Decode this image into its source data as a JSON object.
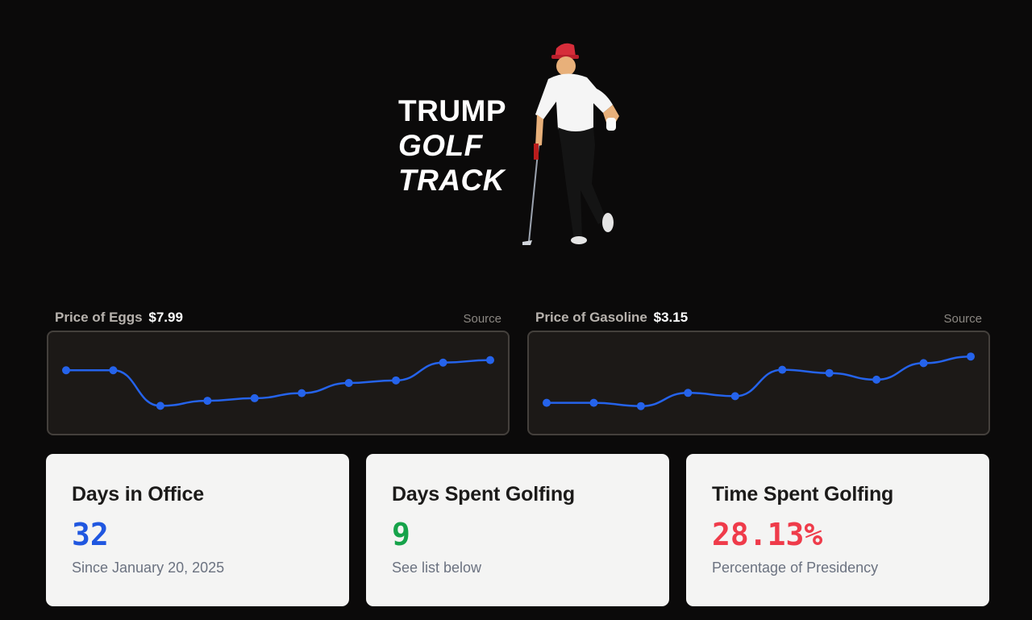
{
  "hero": {
    "line1": "TRUMP",
    "line2": "GOLF",
    "line3": "TRACK",
    "image": "golfer-leaning-on-putter"
  },
  "eggs": {
    "title": "Price of Eggs",
    "value": "$7.99",
    "source_label": "Source"
  },
  "gas": {
    "title": "Price of Gasoline",
    "value": "$3.15",
    "source_label": "Source"
  },
  "stats": [
    {
      "label": "Days in Office",
      "value": "32",
      "sub": "Since January 20, 2025",
      "color": "#2057e0"
    },
    {
      "label": "Days Spent Golfing",
      "value": "9",
      "sub": "See list below",
      "color": "#16a34a"
    },
    {
      "label": "Time Spent Golfing",
      "value": "28.13%",
      "sub": "Percentage of Presidency",
      "color": "#ef3b4a"
    }
  ],
  "chart_data": [
    {
      "type": "line",
      "name": "eggs",
      "values": [
        7.4,
        7.4,
        6.0,
        6.2,
        6.3,
        6.5,
        6.9,
        7.0,
        7.7,
        7.8
      ],
      "ylim": [
        5.6,
        8.2
      ],
      "color": "#2563eb"
    },
    {
      "type": "line",
      "name": "gas",
      "values": [
        3.02,
        3.02,
        3.01,
        3.05,
        3.04,
        3.12,
        3.11,
        3.09,
        3.14,
        3.16
      ],
      "ylim": [
        2.98,
        3.18
      ],
      "color": "#2563eb"
    }
  ]
}
